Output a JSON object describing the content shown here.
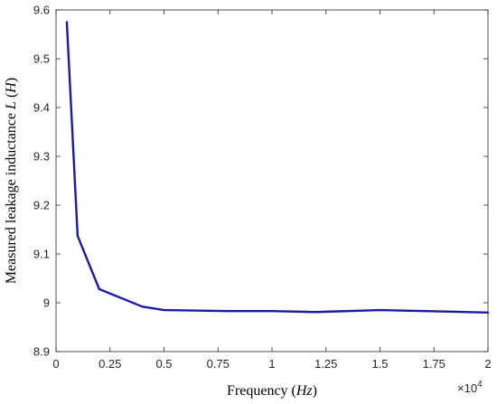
{
  "chart_data": {
    "type": "line",
    "xlabel": {
      "prefix": "Frequency (",
      "italic": "Hz",
      "suffix": ")"
    },
    "ylabel": {
      "prefix": "Measured leakage inductance ",
      "italic1": "L",
      "middle": " (",
      "italic2": "H",
      "suffix": ")"
    },
    "x_multiplier": {
      "base": "×10",
      "exponent": "4"
    },
    "xlim": [
      0,
      20000
    ],
    "ylim": [
      8.9,
      9.6
    ],
    "x_ticks": [
      0,
      2500,
      5000,
      7500,
      10000,
      12500,
      15000,
      17500,
      20000
    ],
    "x_tick_labels": [
      "0",
      "0.25",
      "0.5",
      "0.75",
      "1",
      "1.25",
      "1.5",
      "1.75",
      "2"
    ],
    "y_ticks": [
      8.9,
      9.0,
      9.1,
      9.2,
      9.3,
      9.4,
      9.5,
      9.6
    ],
    "y_tick_labels": [
      "8.9",
      "9",
      "9.1",
      "9.2",
      "9.3",
      "9.4",
      "9.5",
      "9.6"
    ],
    "grid": false,
    "series": [
      {
        "color": "#1a1aa6",
        "x": [
          500,
          1000,
          2000,
          4000,
          5000,
          8000,
          10000,
          12000,
          15000,
          20000
        ],
        "y": [
          9.575,
          9.137,
          9.028,
          8.992,
          8.985,
          8.983,
          8.983,
          8.981,
          8.985,
          8.98
        ]
      }
    ]
  }
}
